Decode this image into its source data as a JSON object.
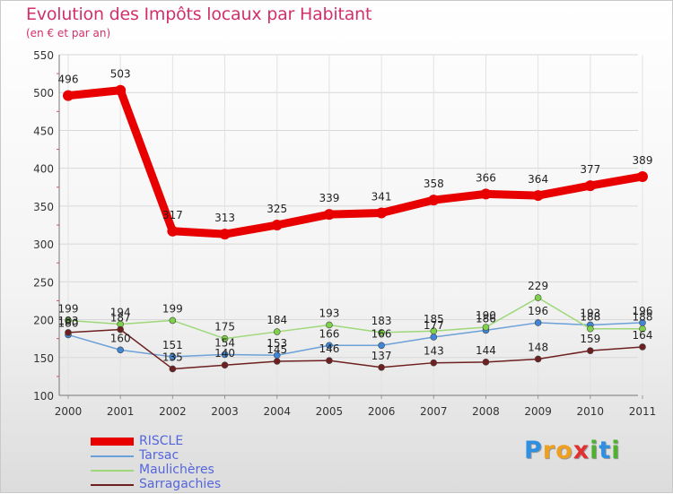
{
  "header": {
    "title": "Evolution des Impôts locaux par Habitant",
    "subtitle": "(en € et par an)"
  },
  "logo": {
    "letters": [
      "P",
      "r",
      "o",
      "x",
      "i",
      "t",
      "i"
    ],
    "colors": [
      "#2f8fe0",
      "#f0a020",
      "#f0a020",
      "#e03030",
      "#50b030",
      "#2f8fe0",
      "#50b030"
    ]
  },
  "chart_data": {
    "type": "line",
    "title": "Evolution des Impôts locaux par Habitant",
    "subtitle": "(en € et par an)",
    "xlabel": "",
    "ylabel": "",
    "categories": [
      "2000",
      "2001",
      "2002",
      "2003",
      "2004",
      "2005",
      "2006",
      "2007",
      "2008",
      "2009",
      "2010",
      "2011"
    ],
    "ylim": [
      100,
      550
    ],
    "yticks": [
      100,
      150,
      200,
      250,
      300,
      350,
      400,
      450,
      500,
      550
    ],
    "grid": true,
    "legend_position": "bottom-left",
    "series": [
      {
        "name": "RISCLE",
        "color": "#e80000",
        "marker": "#e80000",
        "width": "thick",
        "values": [
          496,
          503,
          317,
          313,
          325,
          339,
          341,
          358,
          366,
          364,
          377,
          389
        ],
        "labels": [
          "496",
          "503",
          "317",
          "313",
          "325",
          "339",
          "341",
          "358",
          "366",
          "364",
          "377",
          "389"
        ]
      },
      {
        "name": "Tarsac",
        "color": "#6ca0d8",
        "marker": "#3f86d8",
        "width": "thin",
        "values": [
          180,
          160,
          151,
          154,
          153,
          166,
          166,
          177,
          186,
          196,
          193,
          196
        ],
        "labels": [
          "180",
          "160",
          "151",
          "154",
          "153",
          "166",
          "166",
          "177",
          "186",
          "196",
          "193",
          "196"
        ]
      },
      {
        "name": "Maulichères",
        "color": "#9ed87a",
        "marker": "#7ed24a",
        "width": "thin",
        "values": [
          199,
          194,
          199,
          175,
          184,
          193,
          183,
          185,
          190,
          229,
          188,
          188
        ],
        "labels": [
          "199",
          "194",
          "199",
          "175",
          "184",
          "193",
          "183",
          "185",
          "190",
          "229",
          "188",
          "188"
        ]
      },
      {
        "name": "Sarragachies",
        "color": "#6e1f1f",
        "marker": "#6e1f1f",
        "width": "thin",
        "values": [
          183,
          187,
          135,
          140,
          145,
          146,
          137,
          143,
          144,
          148,
          159,
          164
        ],
        "labels": [
          "183",
          "187",
          "135",
          "140",
          "145",
          "146",
          "137",
          "143",
          "144",
          "148",
          "159",
          "164"
        ]
      }
    ]
  }
}
